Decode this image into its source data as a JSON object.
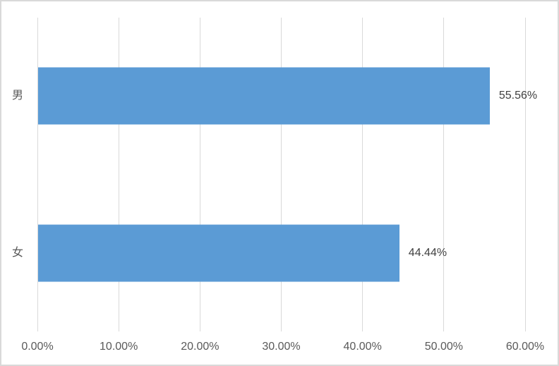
{
  "chart_data": {
    "type": "bar",
    "orientation": "horizontal",
    "title": "",
    "xlabel": "",
    "ylabel": "",
    "categories": [
      "男",
      "女"
    ],
    "values": [
      55.56,
      44.44
    ],
    "data_labels": [
      "55.56%",
      "44.44%"
    ],
    "x_ticks": [
      {
        "value": 0,
        "label": "0.00%"
      },
      {
        "value": 10,
        "label": "10.00%"
      },
      {
        "value": 20,
        "label": "20.00%"
      },
      {
        "value": 30,
        "label": "30.00%"
      },
      {
        "value": 40,
        "label": "40.00%"
      },
      {
        "value": 50,
        "label": "50.00%"
      },
      {
        "value": 60,
        "label": "60.00%"
      }
    ],
    "xlim": [
      0,
      60
    ],
    "grid": "vertical-gridlines-on",
    "legend": "none",
    "colors": {
      "bar_fill": "#5b9bd5",
      "gridline": "#d9d9d9",
      "chart_border": "#d9d9d9",
      "axis_text": "#595959",
      "data_label_text": "#404040",
      "background": "#ffffff"
    }
  }
}
